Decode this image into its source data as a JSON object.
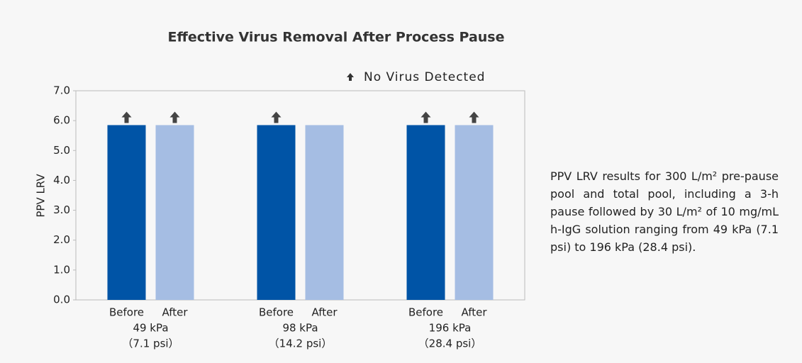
{
  "chart_data": {
    "type": "bar",
    "title": "Effective Virus Removal After Process Pause",
    "ylabel": "PPV LRV",
    "legend_note": "No Virus Detected",
    "categories": [
      "49 kPa",
      "98 kPa",
      "196 kPa"
    ],
    "category_sublabels": [
      "（7.1 psi）",
      "（14.2 psi）",
      "（28.4 psi）"
    ],
    "series": [
      {
        "name": "Before",
        "color": "#0054a6",
        "values": [
          5.85,
          5.85,
          5.85
        ],
        "no_virus_detected": [
          true,
          true,
          true
        ]
      },
      {
        "name": "After",
        "color": "#a5bde3",
        "values": [
          5.85,
          5.85,
          5.85
        ],
        "no_virus_detected": [
          true,
          false,
          true
        ]
      }
    ],
    "ylim": [
      0,
      7
    ],
    "yticks": [
      {
        "value": 0,
        "label": "0.0"
      },
      {
        "value": 1,
        "label": "1.0"
      },
      {
        "value": 2,
        "label": "2.0"
      },
      {
        "value": 3,
        "label": "3.0"
      },
      {
        "value": 4,
        "label": "4.0"
      },
      {
        "value": 5,
        "label": "5.0"
      },
      {
        "value": 6,
        "label": "6.0"
      },
      {
        "value": 7,
        "label": "7.0"
      }
    ],
    "grid": false,
    "annotation": "PPV LRV results for 300 L/m² pre-pause pool and total pool, including a 3-h pause followed by 30 L/m² of 10 mg/mL h-IgG solution ranging from 49 kPa (7.1 psi) to 196 kPa (28.4 psi)."
  }
}
